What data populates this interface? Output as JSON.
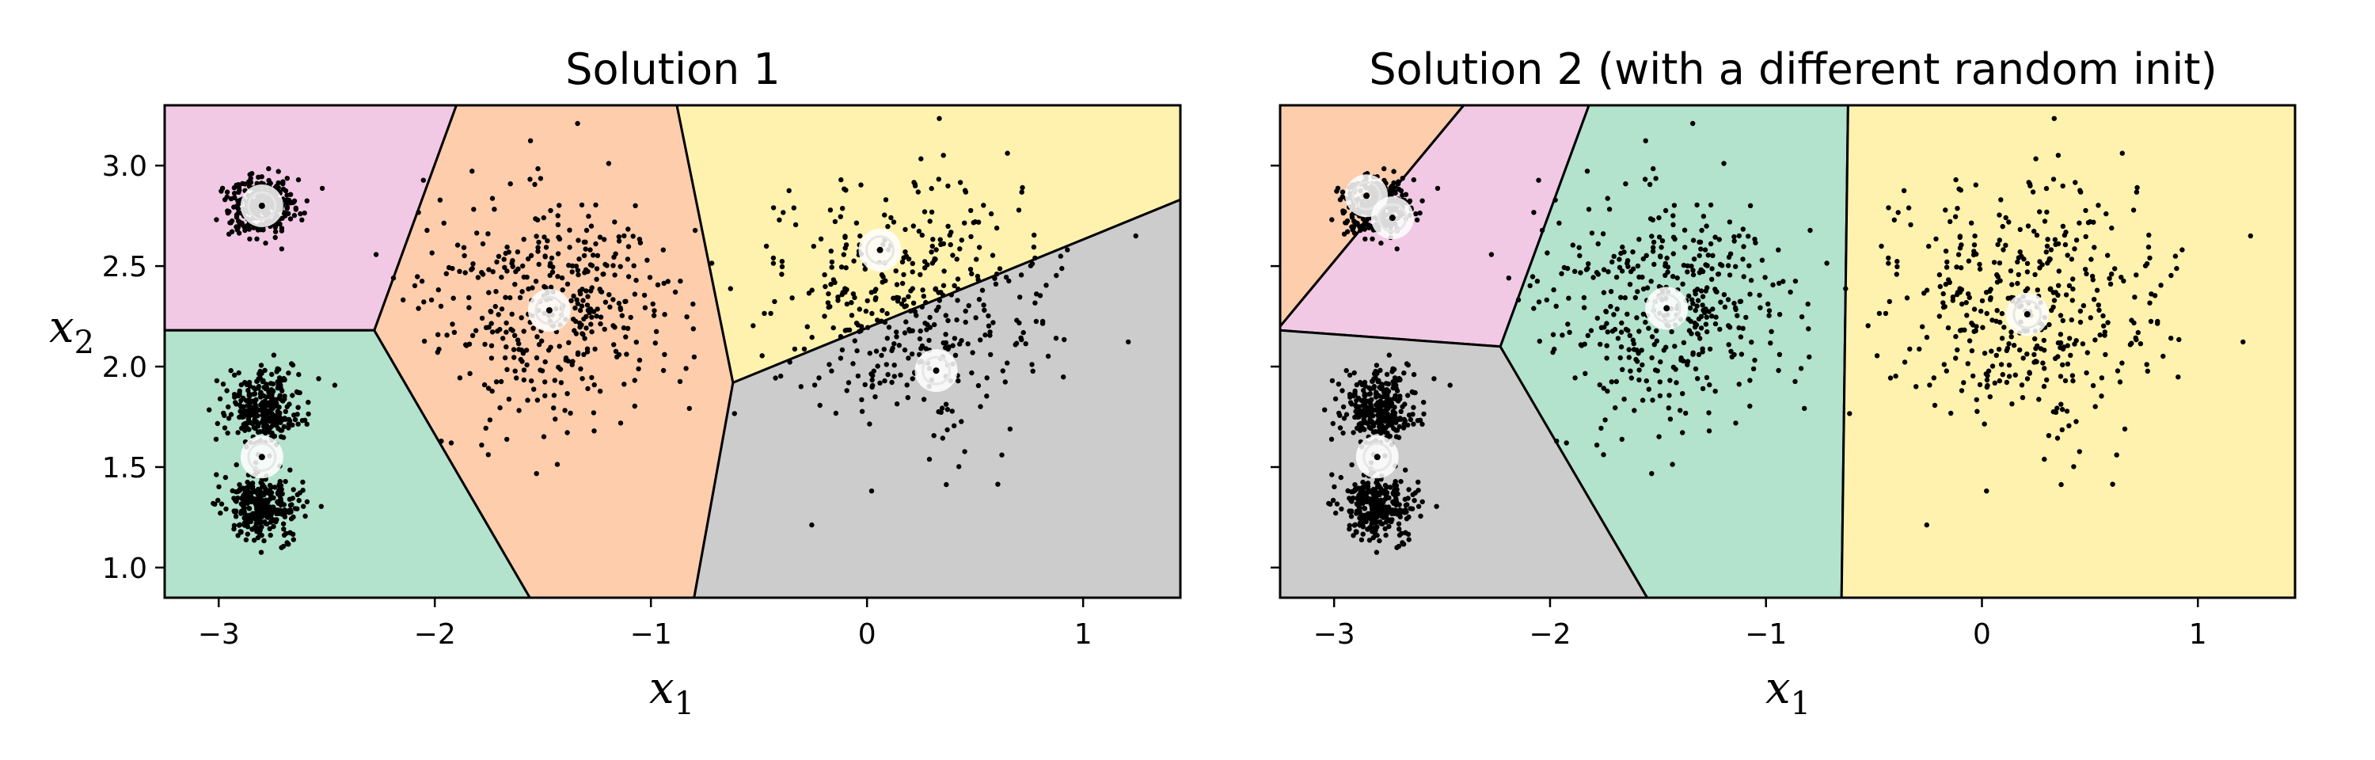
{
  "figure": {
    "titles": [
      "Solution 1",
      "Solution 2 (with a different random init)"
    ],
    "xlabel": "x",
    "xlabel_subscript": "1",
    "ylabel": "x",
    "ylabel_subscript": "2"
  },
  "chart_data": [
    {
      "type": "scatter",
      "title": "Solution 1",
      "xlabel": "x1",
      "ylabel": "x2",
      "xlim": [
        -3.25,
        1.45
      ],
      "ylim": [
        0.85,
        3.3
      ],
      "xticks": [
        -3,
        -2,
        -1,
        0,
        1
      ],
      "xtick_labels": [
        "−3",
        "−2",
        "−1",
        "0",
        "1"
      ],
      "yticks": [
        1.0,
        1.5,
        2.0,
        2.5,
        3.0
      ],
      "ytick_labels": [
        "1.0",
        "1.5",
        "2.0",
        "2.5",
        "3.0"
      ],
      "grid": false,
      "regions": [
        {
          "color": "#f2c9e4",
          "vertices": [
            [
              -3.25,
              3.3
            ],
            [
              -1.9,
              3.3
            ],
            [
              -2.28,
              2.18
            ],
            [
              -3.25,
              2.18
            ]
          ]
        },
        {
          "color": "#b3e2cd",
          "vertices": [
            [
              -3.25,
              2.18
            ],
            [
              -2.28,
              2.18
            ],
            [
              -1.56,
              0.85
            ],
            [
              -3.25,
              0.85
            ]
          ]
        },
        {
          "color": "#fdcdac",
          "vertices": [
            [
              -1.9,
              3.3
            ],
            [
              -0.88,
              3.3
            ],
            [
              -0.62,
              1.92
            ],
            [
              -0.8,
              0.85
            ],
            [
              -1.56,
              0.85
            ],
            [
              -2.28,
              2.18
            ]
          ]
        },
        {
          "color": "#fff2ae",
          "vertices": [
            [
              -0.88,
              3.3
            ],
            [
              1.45,
              3.3
            ],
            [
              1.45,
              2.83
            ],
            [
              -0.62,
              1.92
            ]
          ]
        },
        {
          "color": "#cccccc",
          "vertices": [
            [
              -0.62,
              1.92
            ],
            [
              1.45,
              2.83
            ],
            [
              1.45,
              0.85
            ],
            [
              -0.8,
              0.85
            ]
          ]
        }
      ],
      "clusters": [
        {
          "center": [
            -2.8,
            2.8
          ],
          "std": 0.08,
          "count": 300
        },
        {
          "center": [
            -2.8,
            1.3
          ],
          "std": 0.09,
          "count": 300
        },
        {
          "center": [
            -2.8,
            1.8
          ],
          "std": 0.09,
          "count": 300
        },
        {
          "center": [
            -1.46,
            2.3
          ],
          "std": 0.28,
          "count": 420
        },
        {
          "center": [
            0.2,
            2.3
          ],
          "std": 0.32,
          "count": 420
        }
      ],
      "centroids": [
        [
          -2.8,
          2.8
        ],
        [
          -2.8,
          1.55
        ],
        [
          -1.47,
          2.28
        ],
        [
          0.06,
          2.58
        ],
        [
          0.32,
          1.98
        ]
      ]
    },
    {
      "type": "scatter",
      "title": "Solution 2 (with a different random init)",
      "xlabel": "x1",
      "ylabel": "x2",
      "xlim": [
        -3.25,
        1.45
      ],
      "ylim": [
        0.85,
        3.3
      ],
      "xticks": [
        -3,
        -2,
        -1,
        0,
        1
      ],
      "xtick_labels": [
        "−3",
        "−2",
        "−1",
        "0",
        "1"
      ],
      "yticks": [
        1.0,
        1.5,
        2.0,
        2.5,
        3.0
      ],
      "ytick_labels": [
        "",
        "",
        "",
        "",
        ""
      ],
      "grid": false,
      "regions": [
        {
          "color": "#fdcdac",
          "vertices": [
            [
              -3.25,
              3.3
            ],
            [
              -2.4,
              3.3
            ],
            [
              -3.25,
              2.2
            ]
          ]
        },
        {
          "color": "#f2c9e4",
          "vertices": [
            [
              -2.4,
              3.3
            ],
            [
              -1.82,
              3.3
            ],
            [
              -2.23,
              2.1
            ],
            [
              -3.25,
              2.18
            ],
            [
              -3.25,
              2.2
            ]
          ]
        },
        {
          "color": "#cccccc",
          "vertices": [
            [
              -3.25,
              2.18
            ],
            [
              -2.23,
              2.1
            ],
            [
              -1.55,
              0.85
            ],
            [
              -3.25,
              0.85
            ]
          ]
        },
        {
          "color": "#b3e2cd",
          "vertices": [
            [
              -1.82,
              3.3
            ],
            [
              -0.62,
              3.3
            ],
            [
              -0.65,
              0.85
            ],
            [
              -1.55,
              0.85
            ],
            [
              -2.23,
              2.1
            ]
          ]
        },
        {
          "color": "#fff2ae",
          "vertices": [
            [
              -0.62,
              3.3
            ],
            [
              1.45,
              3.3
            ],
            [
              1.45,
              0.85
            ],
            [
              -0.65,
              0.85
            ]
          ]
        }
      ],
      "clusters": [
        {
          "center": [
            -2.8,
            2.8
          ],
          "std": 0.08,
          "count": 300
        },
        {
          "center": [
            -2.8,
            1.3
          ],
          "std": 0.09,
          "count": 300
        },
        {
          "center": [
            -2.8,
            1.8
          ],
          "std": 0.09,
          "count": 300
        },
        {
          "center": [
            -1.46,
            2.3
          ],
          "std": 0.28,
          "count": 420
        },
        {
          "center": [
            0.2,
            2.3
          ],
          "std": 0.32,
          "count": 420
        }
      ],
      "centroids": [
        [
          -2.85,
          2.85
        ],
        [
          -2.73,
          2.74
        ],
        [
          -2.8,
          1.55
        ],
        [
          -1.46,
          2.29
        ],
        [
          0.21,
          2.26
        ]
      ]
    }
  ]
}
